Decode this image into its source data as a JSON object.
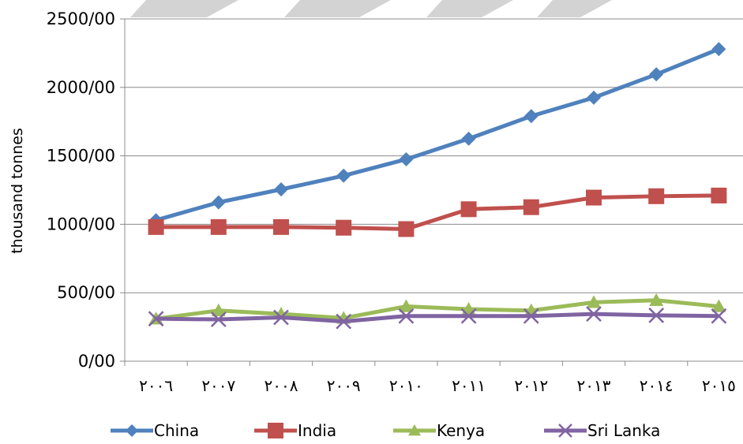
{
  "chart_data": {
    "type": "line",
    "ylabel": "thousand tonnes",
    "xlabel": "",
    "title": "",
    "ylim": [
      0,
      2500
    ],
    "y_ticks": [
      0,
      500,
      1000,
      1500,
      2000,
      2500
    ],
    "y_tick_labels": [
      "0/00",
      "500/00",
      "1000/00",
      "1500/00",
      "2000/00",
      "2500/00"
    ],
    "categories": [
      "٢٠٠٦",
      "٢٠٠٧",
      "٢٠٠٨",
      "٢٠٠٩",
      "٢٠١٠",
      "٢٠١١",
      "٢٠١٢",
      "٢٠١٣",
      "٢٠١٤",
      "٢٠١٥"
    ],
    "grid": "horizontal",
    "legend_position": "bottom",
    "series": [
      {
        "name": "China",
        "color": "#4F81BD",
        "marker": "diamond",
        "values": [
          1030,
          1160,
          1255,
          1355,
          1475,
          1625,
          1790,
          1925,
          2095,
          2280
        ]
      },
      {
        "name": "India",
        "color": "#C0504D",
        "marker": "square",
        "values": [
          980,
          980,
          980,
          975,
          965,
          1110,
          1125,
          1195,
          1205,
          1210
        ]
      },
      {
        "name": "Kenya",
        "color": "#9BBB59",
        "marker": "triangle",
        "values": [
          310,
          370,
          345,
          315,
          400,
          380,
          370,
          430,
          445,
          400
        ]
      },
      {
        "name": "Sri Lanka",
        "color": "#8064A2",
        "marker": "x",
        "values": [
          310,
          305,
          320,
          290,
          330,
          330,
          330,
          345,
          335,
          330
        ]
      }
    ]
  }
}
